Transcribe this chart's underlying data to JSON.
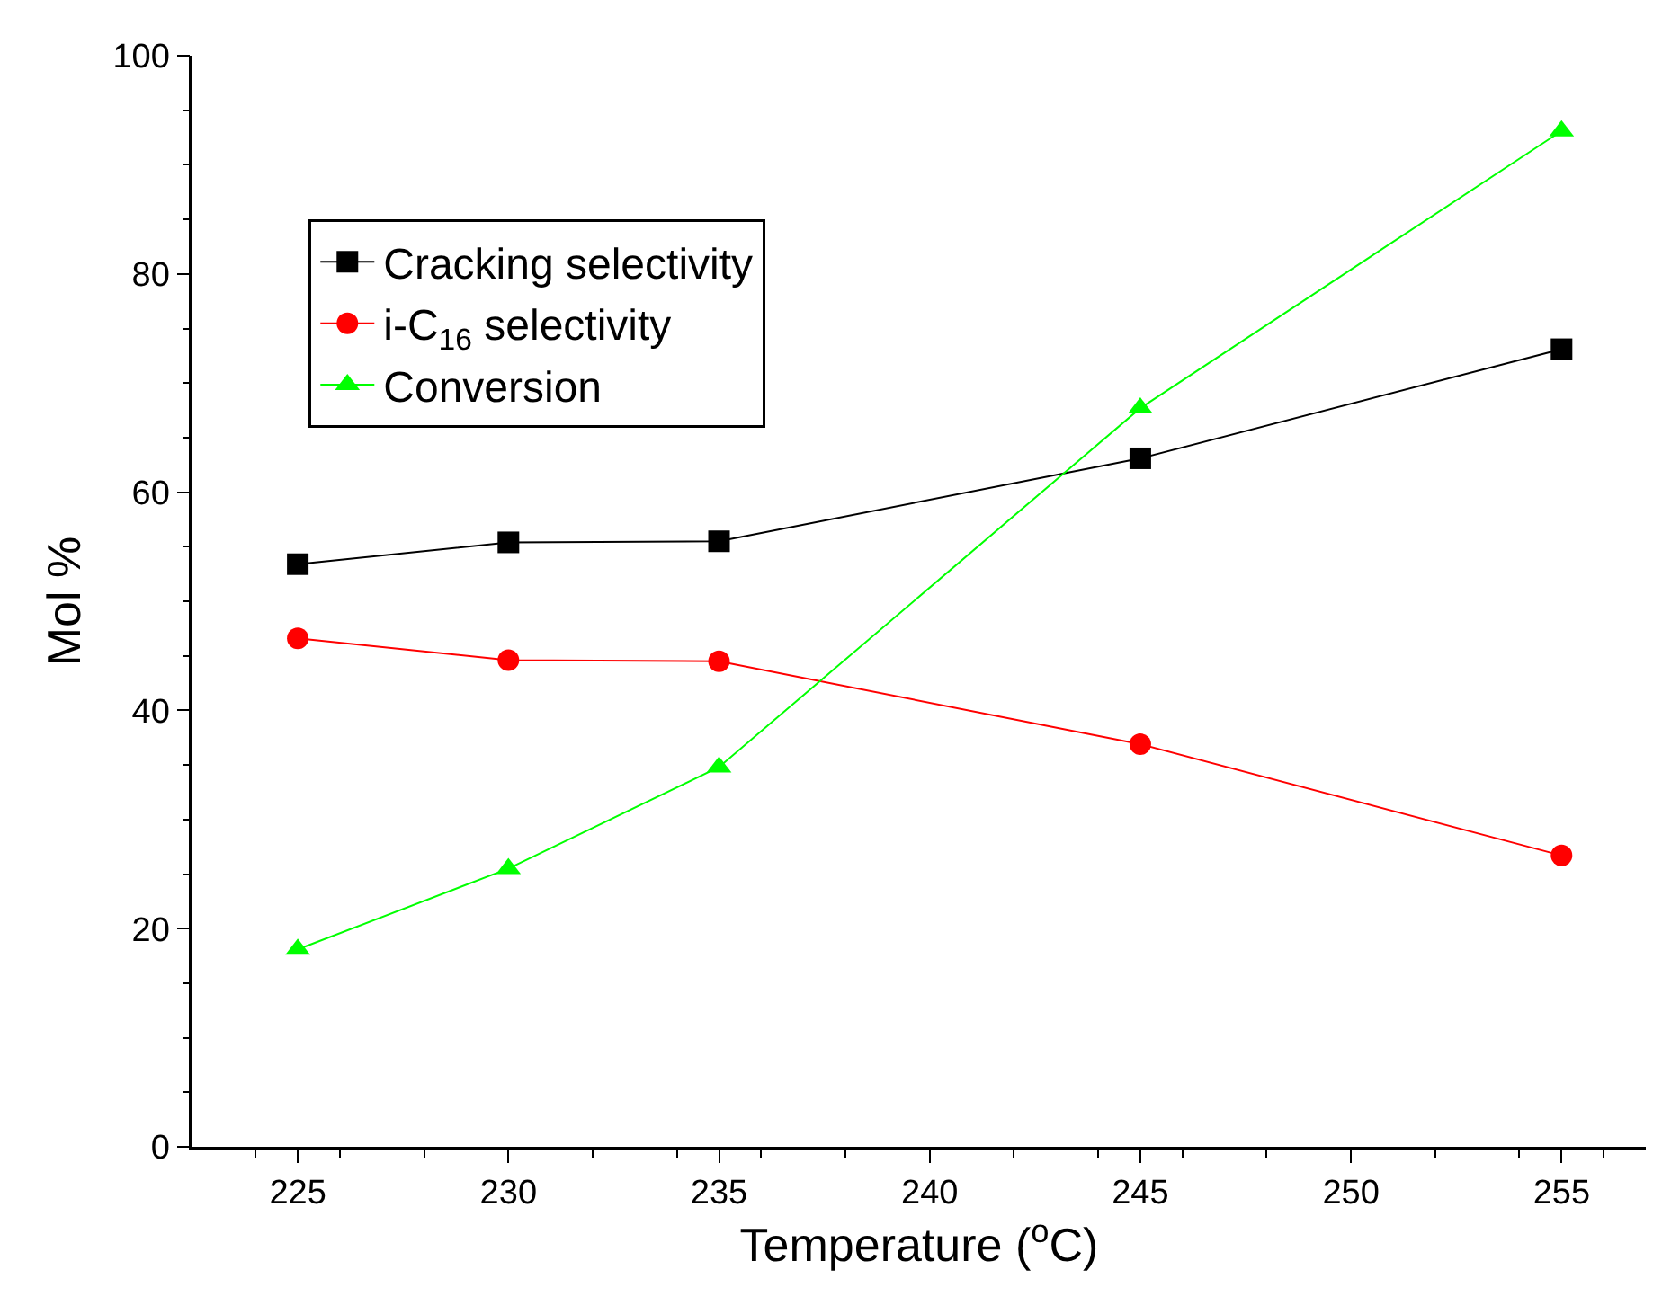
{
  "chart_data": {
    "type": "line",
    "xlabel": "Temperature ($^{o}$C)",
    "ylabel": "Mol %",
    "x": [
      225,
      230,
      235,
      245,
      255
    ],
    "series": [
      {
        "name": "Cracking selectivity",
        "color": "#000000",
        "marker": "square",
        "values": [
          53.4,
          55.4,
          55.5,
          63.1,
          73.1
        ]
      },
      {
        "name": "i-C$_{16}$ selectivity",
        "color": "#ff0000",
        "marker": "circle",
        "values": [
          46.6,
          44.6,
          44.5,
          36.9,
          26.7
        ]
      },
      {
        "name": "Conversion",
        "color": "#00ff00",
        "marker": "triangle",
        "values": [
          18.1,
          25.5,
          34.8,
          67.7,
          93.1
        ]
      }
    ],
    "xlim": [
      222.5,
      257
    ],
    "xticks": [
      225,
      230,
      235,
      240,
      245,
      250,
      255
    ],
    "ylim": [
      0,
      100
    ],
    "yticks": [
      0,
      20,
      40,
      60,
      80,
      100
    ],
    "grid": false,
    "legend": "top left",
    "line_style": "solid"
  }
}
